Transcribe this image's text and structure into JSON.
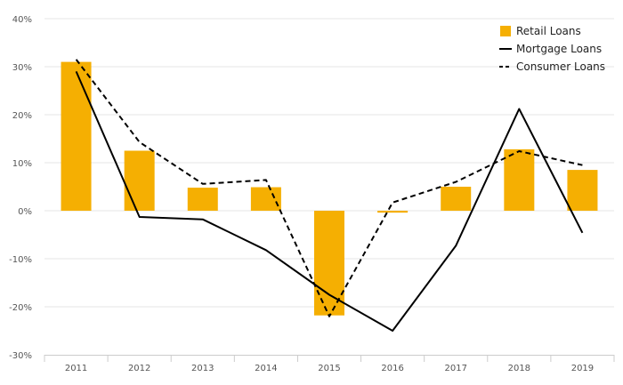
{
  "chart_data": {
    "type": "bar",
    "categories": [
      "2011",
      "2012",
      "2013",
      "2014",
      "2015",
      "2016",
      "2017",
      "2018",
      "2019"
    ],
    "ylim": [
      -30,
      40
    ],
    "yticks": [
      "40%",
      "30%",
      "20%",
      "10%",
      "0%",
      "-10%",
      "-20%",
      "-30%"
    ],
    "ytick_values": [
      40,
      30,
      20,
      10,
      0,
      -10,
      -20,
      -30
    ],
    "grid": true,
    "legend_position": "top-right",
    "series": [
      {
        "name": "Retail Loans",
        "kind": "bar",
        "style": "solid",
        "color": "#F5AF02",
        "values": [
          31,
          12.5,
          4.8,
          4.9,
          -21.8,
          -0.4,
          5,
          12.8,
          8.5
        ]
      },
      {
        "name": "Mortgage Loans",
        "kind": "line",
        "style": "solid",
        "color": "#000000",
        "values": [
          29,
          -1.3,
          -1.8,
          -8.2,
          -17.5,
          -25,
          -7.3,
          21.2,
          -4.6
        ]
      },
      {
        "name": "Consumer Loans",
        "kind": "line",
        "style": "dashed",
        "color": "#000000",
        "values": [
          31.5,
          14.3,
          5.6,
          6.4,
          -22,
          1.7,
          6,
          12.4,
          9.5
        ]
      }
    ]
  }
}
